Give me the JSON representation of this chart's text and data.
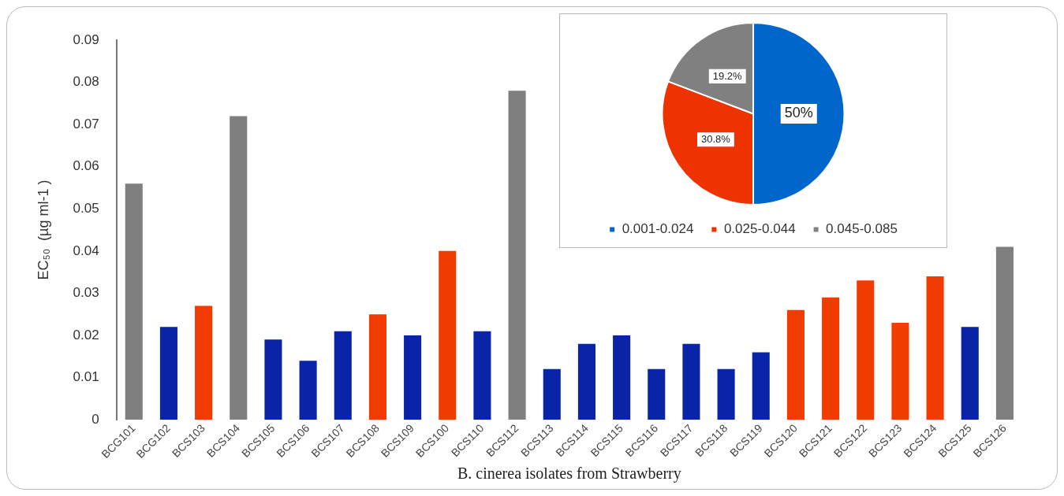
{
  "chart_data": [
    {
      "type": "bar",
      "xlabel": "B. cinerea isolates from Strawberry",
      "ylabel": "EC₅₀  (µg ml-1 )",
      "categories": [
        "BCG101",
        "BCG102",
        "BCS103",
        "BCS104",
        "BCS105",
        "BCS106",
        "BCS107",
        "BCS108",
        "BCS109",
        "BCS100",
        "BCS110",
        "BCS112",
        "BCS113",
        "BCS114",
        "BCS115",
        "BCS116",
        "BCS117",
        "BCS118",
        "BCS119",
        "BCS120",
        "BCS121",
        "BCS122",
        "BCS123",
        "BCS124",
        "BCS125",
        "BCS126"
      ],
      "values": [
        0.056,
        0.022,
        0.027,
        0.072,
        0.019,
        0.014,
        0.021,
        0.025,
        0.02,
        0.04,
        0.021,
        0.078,
        0.012,
        0.018,
        0.02,
        0.012,
        0.018,
        0.012,
        0.016,
        0.026,
        0.029,
        0.033,
        0.023,
        0.034,
        0.022,
        0.041
      ],
      "colors": [
        "#7f7f7f",
        "#0a24a8",
        "#f03c00",
        "#7f7f7f",
        "#0a24a8",
        "#0a24a8",
        "#0a24a8",
        "#f03c00",
        "#0a24a8",
        "#f03c00",
        "#0a24a8",
        "#7f7f7f",
        "#0a24a8",
        "#0a24a8",
        "#0a24a8",
        "#0a24a8",
        "#0a24a8",
        "#0a24a8",
        "#0a24a8",
        "#f03c00",
        "#f03c00",
        "#f03c00",
        "#f03c00",
        "#f03c00",
        "#0a24a8",
        "#7f7f7f"
      ],
      "ylim": [
        0,
        0.09
      ],
      "yticks": [
        0,
        0.01,
        0.02,
        0.03,
        0.04,
        0.05,
        0.06,
        0.07,
        0.08,
        0.09
      ],
      "grid": false,
      "legend": false
    },
    {
      "type": "pie",
      "categories": [
        "0.001-0.024",
        "0.025-0.044",
        "0.045-0.085"
      ],
      "values": [
        50,
        30.8,
        19.2
      ],
      "colors": [
        "#0066cc",
        "#ee3300",
        "#808080"
      ],
      "value_labels": [
        "50%",
        "30.8%",
        "19.2%"
      ],
      "legend": "bottom"
    }
  ]
}
